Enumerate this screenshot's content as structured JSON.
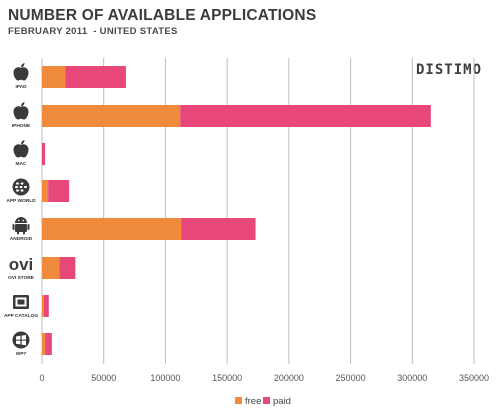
{
  "header": {
    "title": "NUMBER OF AVAILABLE APPLICATIONS",
    "subtitle": "FEBRUARY 2011  - UNITED STATES",
    "brand": "DISTIMO"
  },
  "colors": {
    "free": "#f08a3c",
    "paid": "#e8477a",
    "grid": "#bdbdbd",
    "icon": "#3a3a3a"
  },
  "chart_data": {
    "type": "bar",
    "orientation": "horizontal",
    "stacked": true,
    "title": "NUMBER OF AVAILABLE APPLICATIONS",
    "subtitle": "FEBRUARY 2011  - UNITED STATES",
    "xlabel": "",
    "ylabel": "",
    "xlim": [
      0,
      350000
    ],
    "xticks": [
      0,
      50000,
      100000,
      150000,
      200000,
      250000,
      300000,
      350000
    ],
    "grid": true,
    "legend_position": "bottom",
    "categories": [
      "IPAD",
      "IPHONE",
      "MAC",
      "APP WORLD",
      "ANDROID",
      "OVI STORE",
      "APP CATALOG",
      "WP7"
    ],
    "icons": [
      "apple-logo-icon",
      "apple-logo-icon",
      "apple-logo-icon",
      "blackberry-logo-icon",
      "android-logo-icon",
      "ovi-logo-icon",
      "palm-logo-icon",
      "windows-logo-icon"
    ],
    "series": [
      {
        "name": "free",
        "values": [
          19000,
          112000,
          0,
          5000,
          113000,
          14000,
          1500,
          2500
        ]
      },
      {
        "name": "paid",
        "values": [
          49000,
          203000,
          2500,
          17000,
          60000,
          13000,
          4000,
          5500
        ]
      }
    ]
  }
}
